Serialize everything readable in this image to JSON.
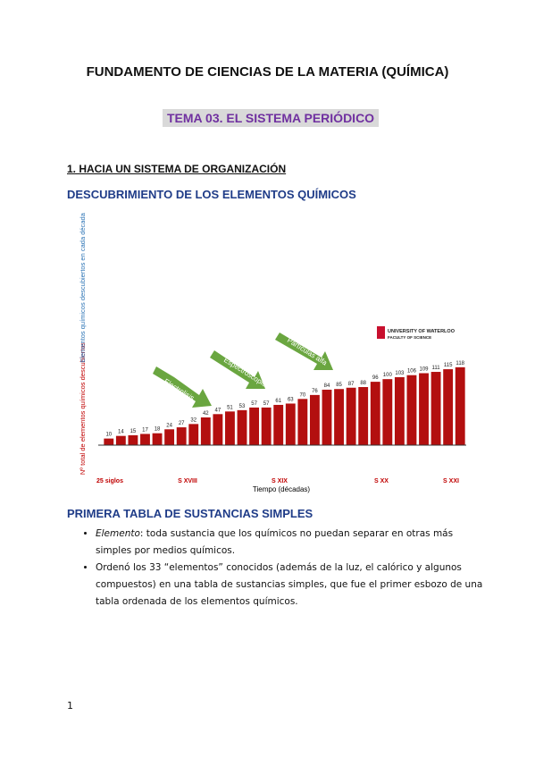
{
  "header": {
    "title": "FUNDAMENTO DE CIENCIAS DE LA MATERIA (QUÍMICA)",
    "topic": "TEMA 03. EL SISTEMA PERIÓDICO"
  },
  "section": {
    "title": "1. HACIA UN SISTEMA DE ORGANIZACIÓN",
    "subtitle": "DESCUBRIMIENTO DE LOS ELEMENTOS QUÍMICOS"
  },
  "chart_data": {
    "type": "bar",
    "top_label": "Elementos químicos descubiertos en cada década",
    "ylabel": "Nº total de elementos químicos descubiertos",
    "xlabel": "Tiempo (décadas)",
    "values": [
      10,
      14,
      15,
      17,
      18,
      24,
      27,
      32,
      42,
      47,
      51,
      53,
      57,
      57,
      61,
      63,
      70,
      76,
      84,
      85,
      87,
      88,
      96,
      100,
      103,
      106,
      109,
      111,
      115,
      118
    ],
    "color": "#b30f0f",
    "ylim": [
      0,
      130
    ],
    "eras": [
      "25 siglos",
      "S XVIII",
      "S XIX",
      "S XX",
      "S XXI"
    ],
    "annotations": [
      "Electrolisis",
      "Espectroscopio",
      "Partículas alfa"
    ],
    "logo": [
      "UNIVERSITY OF WATERLOO",
      "FACULTY OF SCIENCE"
    ]
  },
  "subsection": {
    "title": "PRIMERA TABLA DE SUSTANCIAS SIMPLES",
    "bullets": [
      {
        "term": "Elemento",
        "text": ": toda sustancia que los químicos no puedan separar en otras más simples por medios químicos."
      },
      {
        "text": "Ordenó los 33 “elementos” conocidos (además de la luz, el calórico y algunos compuestos) en una tabla de sustancias simples, que fue el primer esbozo de una tabla ordenada de los elementos químicos."
      }
    ]
  },
  "footer": {
    "page": "1"
  }
}
